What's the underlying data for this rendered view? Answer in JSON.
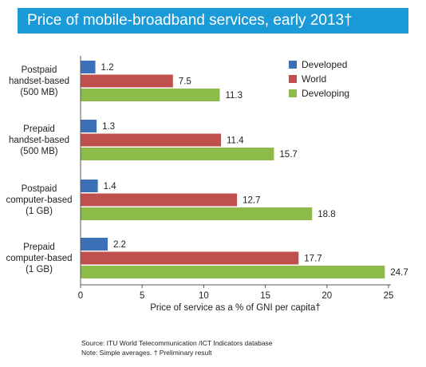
{
  "chart_data": {
    "type": "bar",
    "orientation": "horizontal",
    "title": "Price of mobile-broadband services, early 2013†",
    "xlabel": "Price of service as a % of GNI per capita†",
    "xlim": [
      0,
      25
    ],
    "x_ticks": [
      "0",
      "5",
      "10",
      "15",
      "20",
      "25"
    ],
    "grid": false,
    "legend_position": "top-right",
    "categories": [
      [
        "Postpaid",
        "handset-based",
        "(500 MB)"
      ],
      [
        "Prepaid",
        "handset-based",
        "(500 MB)"
      ],
      [
        "Postpaid",
        "computer-based",
        "(1 GB)"
      ],
      [
        "Prepaid",
        "computer-based",
        "(1 GB)"
      ]
    ],
    "series": [
      {
        "name": "Developed",
        "color": "#3b6fb6",
        "values": [
          1.2,
          1.3,
          1.4,
          2.2
        ],
        "labels": [
          "1.2",
          "1.3",
          "1.4",
          "2.2"
        ]
      },
      {
        "name": "World",
        "color": "#c0504d",
        "values": [
          7.5,
          11.4,
          12.7,
          17.7
        ],
        "labels": [
          "7.5",
          "11.4",
          "12.7",
          "17.7"
        ]
      },
      {
        "name": "Developing",
        "color": "#8cbb4a",
        "values": [
          11.3,
          15.7,
          18.8,
          24.7
        ],
        "labels": [
          "11.3",
          "15.7",
          "18.8",
          "24.7"
        ]
      }
    ]
  },
  "notes": {
    "source": "Source:  ITU World Telecommunication /ICT Indicators database",
    "note": "Note: Simple averages. † Preliminary result"
  }
}
